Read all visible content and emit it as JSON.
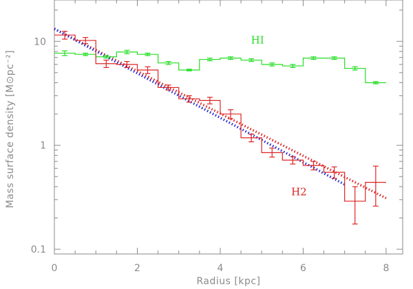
{
  "chart_data": {
    "type": "line",
    "xlabel": "Radius [kpc]",
    "ylabel": "Mass surface density [M⊙pc⁻²]",
    "xlim": [
      0,
      8.4
    ],
    "ylim": [
      0.09,
      25
    ],
    "yscale": "log",
    "x_ticks": [
      0,
      2,
      4,
      6,
      8
    ],
    "y_ticks": [
      0.1,
      1,
      10
    ],
    "x_tick_labels": [
      "0",
      "2",
      "4",
      "6",
      "8"
    ],
    "y_tick_labels": [
      "0.1",
      "1",
      "10"
    ],
    "grid": false,
    "bin_width": 0.5,
    "series": [
      {
        "name": "HI",
        "color": "#22dd22",
        "style": "step-histogram",
        "x": [
          0.25,
          0.75,
          1.25,
          1.75,
          2.25,
          2.75,
          3.25,
          3.75,
          4.25,
          4.75,
          5.25,
          5.75,
          6.25,
          6.75,
          7.25,
          7.75
        ],
        "y": [
          7.7,
          7.5,
          7.1,
          7.9,
          7.5,
          6.2,
          5.3,
          6.7,
          6.9,
          6.6,
          6.0,
          5.8,
          6.9,
          6.9,
          5.5,
          4.0
        ],
        "yerr_low": [
          7.3,
          7.3,
          6.9,
          7.6,
          7.3,
          6.0,
          5.2,
          6.5,
          6.7,
          6.4,
          5.8,
          5.6,
          6.7,
          6.7,
          5.3,
          3.9
        ],
        "yerr_high": [
          8.1,
          7.7,
          7.3,
          8.2,
          7.7,
          6.4,
          5.4,
          6.9,
          7.1,
          6.8,
          6.2,
          6.0,
          7.1,
          7.1,
          5.7,
          4.1
        ]
      },
      {
        "name": "H2",
        "color": "#dd2222",
        "style": "step-histogram",
        "x": [
          0.25,
          0.75,
          1.25,
          1.75,
          2.25,
          2.75,
          3.25,
          3.75,
          4.25,
          4.75,
          5.25,
          5.75,
          6.25,
          6.75,
          7.25,
          7.75
        ],
        "y": [
          11.5,
          10.2,
          6.1,
          6.0,
          5.3,
          3.6,
          2.8,
          2.7,
          2.0,
          1.18,
          0.85,
          0.72,
          0.64,
          0.55,
          0.29,
          0.44
        ],
        "yerr_low": [
          10.5,
          9.5,
          5.6,
          5.6,
          4.9,
          3.4,
          2.6,
          2.5,
          1.8,
          1.08,
          0.77,
          0.66,
          0.58,
          0.48,
          0.175,
          0.26
        ],
        "yerr_high": [
          12.5,
          10.9,
          6.6,
          6.4,
          5.7,
          3.8,
          3.0,
          2.9,
          2.2,
          1.28,
          0.94,
          0.78,
          0.7,
          0.62,
          0.4,
          0.63
        ]
      }
    ],
    "fits": [
      {
        "color": "#dd2222",
        "style": "dotted",
        "x0": 0,
        "y0": 13.2,
        "x1": 8.0,
        "y1": 0.31
      },
      {
        "color": "#2222cc",
        "style": "dotted",
        "x0": 0,
        "y0": 13.2,
        "x1": 7.0,
        "y1": 0.42
      }
    ],
    "annotations": [
      {
        "text": "HI",
        "x": 4.9,
        "y": 9.5,
        "color": "#22dd22"
      },
      {
        "text": "H2",
        "x": 5.9,
        "y": 0.33,
        "color": "#dd2222"
      }
    ]
  }
}
